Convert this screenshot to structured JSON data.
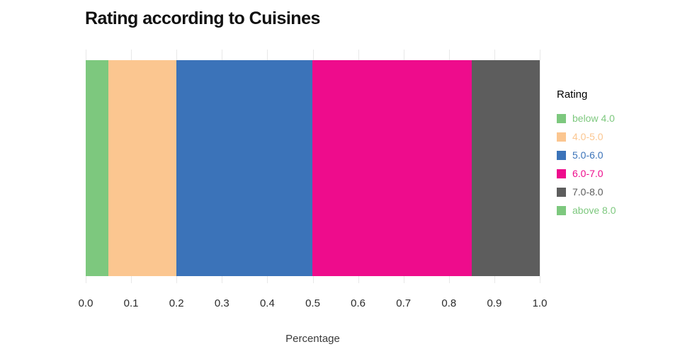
{
  "title": "Rating according to Cuisines",
  "xlabel": "Percentage",
  "legend": {
    "title": "Rating",
    "items": [
      {
        "label": "below 4.0",
        "color": "#7dc87e"
      },
      {
        "label": "4.0-5.0",
        "color": "#fbc690"
      },
      {
        "label": "5.0-6.0",
        "color": "#3b73b9"
      },
      {
        "label": "6.0-7.0",
        "color": "#ee0c8c"
      },
      {
        "label": "7.0-8.0",
        "color": "#5d5d5d"
      },
      {
        "label": "above 8.0",
        "color": "#7dc87e"
      }
    ]
  },
  "chart_data": {
    "type": "bar",
    "orientation": "horizontal",
    "stacked": true,
    "title": "Rating according to Cuisines",
    "xlabel": "Percentage",
    "ylabel": "",
    "xlim": [
      0.0,
      1.0
    ],
    "grid": true,
    "legend_position": "right",
    "legend_title": "Rating",
    "x_ticks": [
      "0.0",
      "0.1",
      "0.2",
      "0.3",
      "0.4",
      "0.5",
      "0.6",
      "0.7",
      "0.8",
      "0.9",
      "1.0"
    ],
    "series": [
      {
        "name": "below 4.0",
        "value": 0.05,
        "color": "#7dc87e"
      },
      {
        "name": "4.0-5.0",
        "value": 0.15,
        "color": "#fbc690"
      },
      {
        "name": "5.0-6.0",
        "value": 0.3,
        "color": "#3b73b9"
      },
      {
        "name": "6.0-7.0",
        "value": 0.35,
        "color": "#ee0c8c"
      },
      {
        "name": "7.0-8.0",
        "value": 0.15,
        "color": "#5d5d5d"
      },
      {
        "name": "above 8.0",
        "value": 0.0,
        "color": "#7dc87e"
      }
    ]
  }
}
